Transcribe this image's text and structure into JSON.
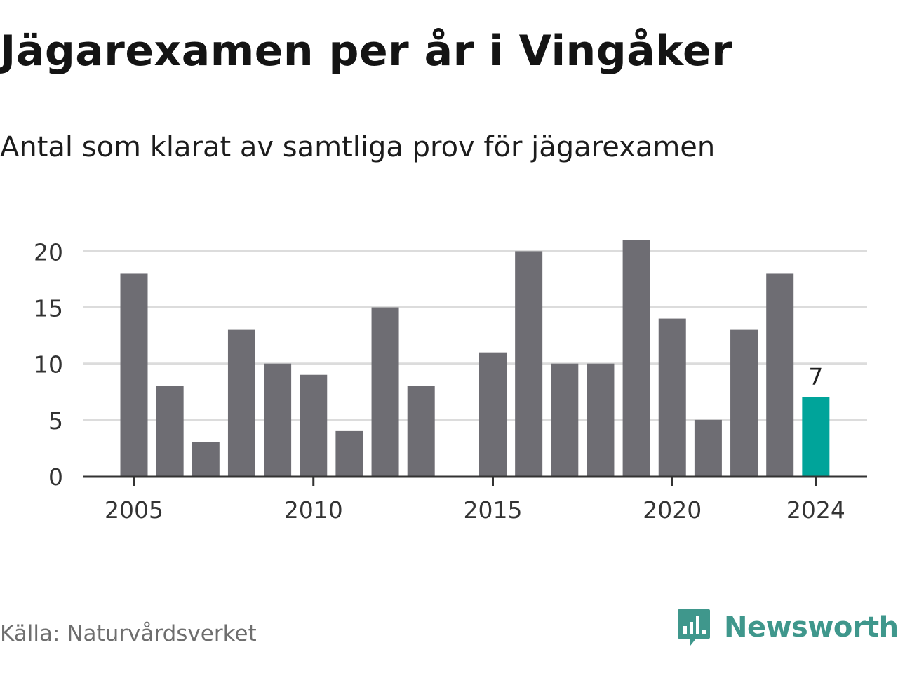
{
  "header": {
    "title": "Jägarexamen per år i Vingåker",
    "subtitle": "Antal som klarat av samtliga prov för jägarexamen"
  },
  "footer": {
    "source": "Källa: Naturvårdsverket",
    "brand_name": "Newsworthy",
    "brand_icon": "newsworthy-chat-bar-icon"
  },
  "colors": {
    "bar": "#6e6d73",
    "highlight": "#00a49a",
    "grid": "#dcdcdc",
    "axis": "#333333",
    "brand": "#3f978c"
  },
  "chart_data": {
    "type": "bar",
    "x": [
      2005,
      2006,
      2007,
      2008,
      2009,
      2010,
      2011,
      2012,
      2013,
      2014,
      2015,
      2016,
      2017,
      2018,
      2019,
      2020,
      2021,
      2022,
      2023,
      2024
    ],
    "values": [
      18,
      8,
      3,
      13,
      10,
      9,
      4,
      15,
      8,
      0,
      11,
      20,
      10,
      10,
      21,
      14,
      5,
      13,
      18,
      7
    ],
    "highlight_index": 19,
    "annotations": [
      {
        "x": 2024,
        "text": "7"
      }
    ],
    "xticks": [
      2005,
      2010,
      2015,
      2020,
      2024
    ],
    "xtick_labels": [
      "2005",
      "2010",
      "2015",
      "2020",
      "2024"
    ],
    "yticks": [
      0,
      5,
      10,
      15,
      20
    ],
    "ytick_labels": [
      "0",
      "5",
      "10",
      "15",
      "20"
    ],
    "ylim": [
      0,
      21
    ],
    "xlabel": "",
    "ylabel": "",
    "grid": true,
    "legend": "none"
  }
}
